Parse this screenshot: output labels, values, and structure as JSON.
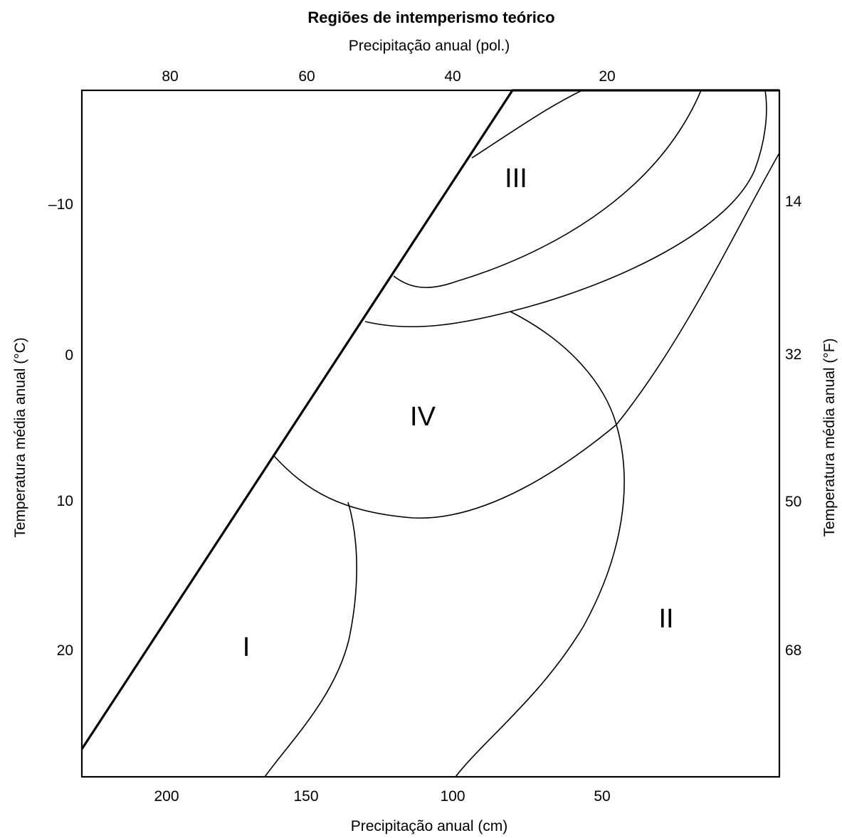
{
  "figure": {
    "title": "Regiões de intemperismo teórico",
    "top_axis_label": "Precipitação anual (pol.)",
    "bottom_axis_label": "Precipitação anual (cm)",
    "left_axis_label": "Temperatura média anual (°C)",
    "right_axis_label": "Temperatura média anual (°F)",
    "top_ticks": [
      "80",
      "60",
      "40",
      "20"
    ],
    "bottom_ticks": [
      "200",
      "150",
      "100",
      "50"
    ],
    "left_ticks": [
      "–10",
      "0",
      "10",
      "20"
    ],
    "right_ticks": [
      "14",
      "32",
      "50",
      "68"
    ],
    "regions": {
      "r1": "I",
      "r2": "II",
      "r3": "III",
      "r4": "IV"
    }
  }
}
